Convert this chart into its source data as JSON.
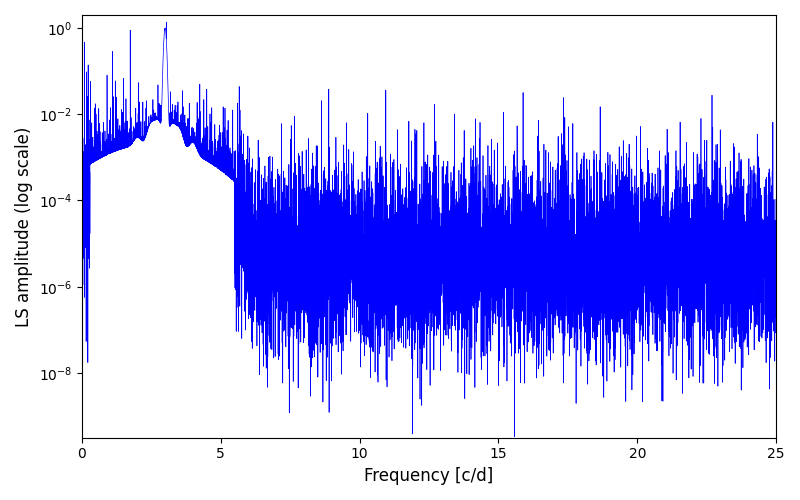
{
  "line_color": "#0000FF",
  "xlabel": "Frequency [c/d]",
  "ylabel": "LS amplitude (log scale)",
  "xlim": [
    0,
    25
  ],
  "ylim_log": [
    -9.5,
    0.3
  ],
  "freq_min": 0.0,
  "freq_max": 25.0,
  "n_points": 10000,
  "peak_freq": 3.0,
  "peak_amp": 1.0,
  "seed": 17,
  "log_noise_std": 1.1,
  "base_high_freq": -5.3,
  "base_low_freq": -4.0,
  "decay_rate": 0.35,
  "figsize": [
    8.0,
    5.0
  ],
  "dpi": 100
}
